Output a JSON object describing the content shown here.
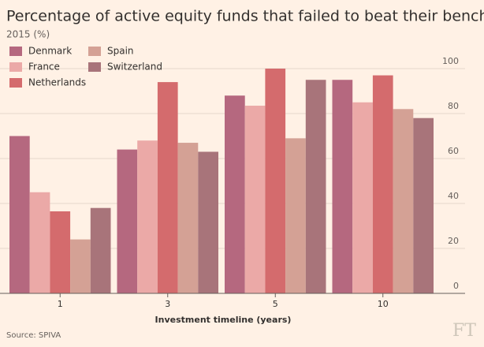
{
  "chart_data": {
    "type": "bar",
    "title": "Percentage of active equity funds that failed to beat their benchmark",
    "subtitle": "2015 (%)",
    "x_label": "Investment timeline (years)",
    "source": "Source: SPIVA",
    "logo": "FT",
    "categories": [
      "1",
      "3",
      "5",
      "10"
    ],
    "series": [
      {
        "name": "Denmark",
        "color": "#b5687f",
        "values": [
          70,
          64,
          88,
          95
        ]
      },
      {
        "name": "France",
        "color": "#eba9a7",
        "values": [
          45,
          68,
          83.5,
          85
        ]
      },
      {
        "name": "Netherlands",
        "color": "#d46b6d",
        "values": [
          36.5,
          94,
          100,
          97
        ]
      },
      {
        "name": "Spain",
        "color": "#d4a195",
        "values": [
          24,
          67,
          69,
          82
        ]
      },
      {
        "name": "Switzerland",
        "color": "#a8747a",
        "values": [
          38,
          63,
          95,
          78
        ]
      }
    ],
    "ylim": [
      0,
      100
    ],
    "yticks": [
      0,
      20,
      40,
      60,
      80,
      100
    ],
    "grid": true,
    "legend": "top-left"
  }
}
